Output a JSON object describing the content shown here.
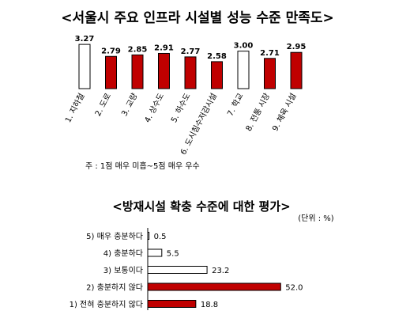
{
  "chart_data": [
    {
      "type": "bar",
      "title": "<서울시 주요 인프라 시설별 성능 수준 만족도>",
      "categories": [
        "1. 지하철",
        "2. 도로",
        "3. 교량",
        "4. 상수도",
        "5. 하수도",
        "6. 도시침수저감시설",
        "7. 학교",
        "8. 전통 시장",
        "9. 체육 시설"
      ],
      "values": [
        3.27,
        2.79,
        2.85,
        2.91,
        2.77,
        2.58,
        3.0,
        2.71,
        2.95
      ],
      "value_labels": [
        "3.27",
        "2.79",
        "2.85",
        "2.91",
        "2.77",
        "2.58",
        "3.00",
        "2.71",
        "2.95"
      ],
      "bar_styles": [
        "white",
        "red",
        "red",
        "red",
        "red",
        "red",
        "white",
        "red",
        "red"
      ],
      "note": "주 : 1점 매우 미흡~5점 매우 우수",
      "ylim": [
        1.5,
        3.4
      ],
      "colors": {
        "red": "#c00000",
        "white": "#ffffff",
        "outline": "#000000"
      }
    },
    {
      "type": "bar",
      "orientation": "horizontal",
      "title": "<방재시설 확충 수준에 대한 평가>",
      "unit": "(단위 : %)",
      "categories": [
        "5) 매우 충분하다",
        "4) 충분하다",
        "3) 보통이다",
        "2) 충분하지 않다",
        "1) 전혀 충분하지 않다"
      ],
      "values": [
        0.5,
        5.5,
        23.2,
        52.0,
        18.8
      ],
      "value_labels": [
        "0.5",
        "5.5",
        "23.2",
        "52.0",
        "18.8"
      ],
      "bar_styles": [
        "white",
        "white",
        "white",
        "red",
        "red"
      ],
      "xlim": [
        0,
        55
      ],
      "colors": {
        "red": "#c00000",
        "white": "#ffffff",
        "outline": "#000000"
      }
    }
  ]
}
